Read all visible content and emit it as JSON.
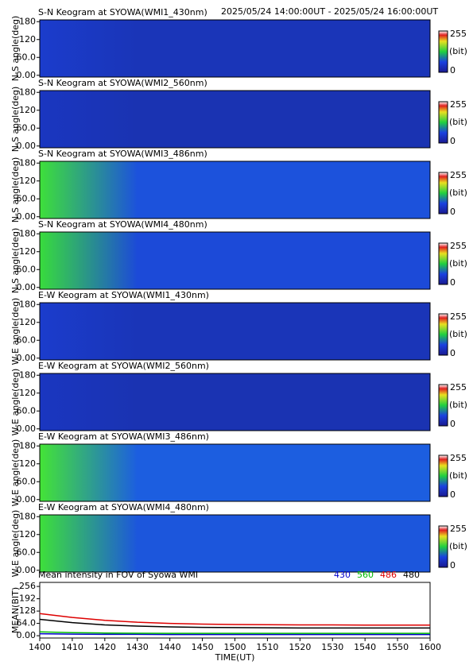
{
  "header": {
    "range": "2025/05/24 14:00:00UT - 2025/05/24 16:00:00UT"
  },
  "keograms": [
    {
      "title": "S-N Keogram at SYOWA(WMI1_430nm)",
      "ylabel": "N-S angle(deg)",
      "fill_colors": [
        "#1b3ccc",
        "#1a35b8"
      ]
    },
    {
      "title": "S-N Keogram at SYOWA(WMI2_560nm)",
      "ylabel": "N-S angle(deg)",
      "fill_colors": [
        "#1a36c0",
        "#1a33b2"
      ]
    },
    {
      "title": "S-N Keogram at SYOWA(WMI3_486nm)",
      "ylabel": "N-S angle(deg)",
      "fill_colors": [
        "#3ee03a",
        "#1c52dc"
      ]
    },
    {
      "title": "S-N Keogram at SYOWA(WMI4_480nm)",
      "ylabel": "N-S angle(deg)",
      "fill_colors": [
        "#38dc3c",
        "#1c4ad8"
      ]
    },
    {
      "title": "E-W Keogram at SYOWA(WMI1_430nm)",
      "ylabel": "W-E angle(deg)",
      "fill_colors": [
        "#1b3ccc",
        "#1a35b8"
      ]
    },
    {
      "title": "E-W Keogram at SYOWA(WMI2_560nm)",
      "ylabel": "W-E angle(deg)",
      "fill_colors": [
        "#1a36c0",
        "#1a33b2"
      ]
    },
    {
      "title": "E-W Keogram at SYOWA(WMI3_486nm)",
      "ylabel": "W-E angle(deg)",
      "fill_colors": [
        "#44e436",
        "#1c5ee0"
      ]
    },
    {
      "title": "E-W Keogram at SYOWA(WMI4_480nm)",
      "ylabel": "W-E angle(deg)",
      "fill_colors": [
        "#3ee03a",
        "#1c56dc"
      ]
    }
  ],
  "keogram_axis": {
    "ylim": [
      -6,
      186
    ],
    "yticks": [
      {
        "value": 0,
        "label": "0.00"
      },
      {
        "value": 60,
        "label": "60.0"
      },
      120,
      180
    ]
  },
  "colorbar": {
    "ticks": [
      0,
      255
    ],
    "unit": "(bit)"
  },
  "chart_data": {
    "type": "line",
    "title": "Mean intensity in FOV of Syowa WMI",
    "xlabel": "TIME(UT)",
    "ylabel": "MEAN(BIT)",
    "x": [
      "14:00",
      "14:10",
      "14:20",
      "14:30",
      "14:40",
      "14:50",
      "15:00",
      "15:10",
      "15:20",
      "15:30",
      "15:40",
      "15:50",
      "16:00"
    ],
    "xlim": [
      "14:00",
      "16:00"
    ],
    "xticks": [
      {
        "value": "14:00",
        "label": "1400"
      },
      {
        "value": "14:10",
        "label": "1410"
      },
      {
        "value": "14:20",
        "label": "1420"
      },
      {
        "value": "14:30",
        "label": "1430"
      },
      {
        "value": "14:40",
        "label": "1440"
      },
      {
        "value": "14:50",
        "label": "1450"
      },
      {
        "value": "15:00",
        "label": "1500"
      },
      {
        "value": "15:10",
        "label": "1510"
      },
      {
        "value": "15:20",
        "label": "1520"
      },
      {
        "value": "15:30",
        "label": "1530"
      },
      {
        "value": "15:40",
        "label": "1540"
      },
      {
        "value": "15:50",
        "label": "1550"
      },
      {
        "value": "16:00",
        "label": "1600"
      }
    ],
    "ylim": [
      -12,
      277
    ],
    "yticks": [
      {
        "value": 0,
        "label": "0.00"
      },
      {
        "value": 64,
        "label": "64.0"
      },
      128,
      192,
      256
    ],
    "series": [
      {
        "name": "430",
        "color": "#0000cc",
        "values": [
          10,
          8,
          7,
          7,
          6,
          6,
          6,
          6,
          6,
          6,
          6,
          6,
          6
        ]
      },
      {
        "name": "560",
        "color": "#00bb00",
        "values": [
          20,
          16,
          14,
          13,
          12,
          12,
          12,
          12,
          12,
          12,
          12,
          12,
          12
        ]
      },
      {
        "name": "486",
        "color": "#dd0000",
        "values": [
          115,
          95,
          80,
          70,
          64,
          60,
          58,
          57,
          56,
          56,
          55,
          55,
          55
        ]
      },
      {
        "name": "480",
        "color": "#000000",
        "values": [
          85,
          68,
          56,
          50,
          46,
          43,
          42,
          41,
          40,
          40,
          40,
          40,
          40
        ]
      }
    ]
  }
}
